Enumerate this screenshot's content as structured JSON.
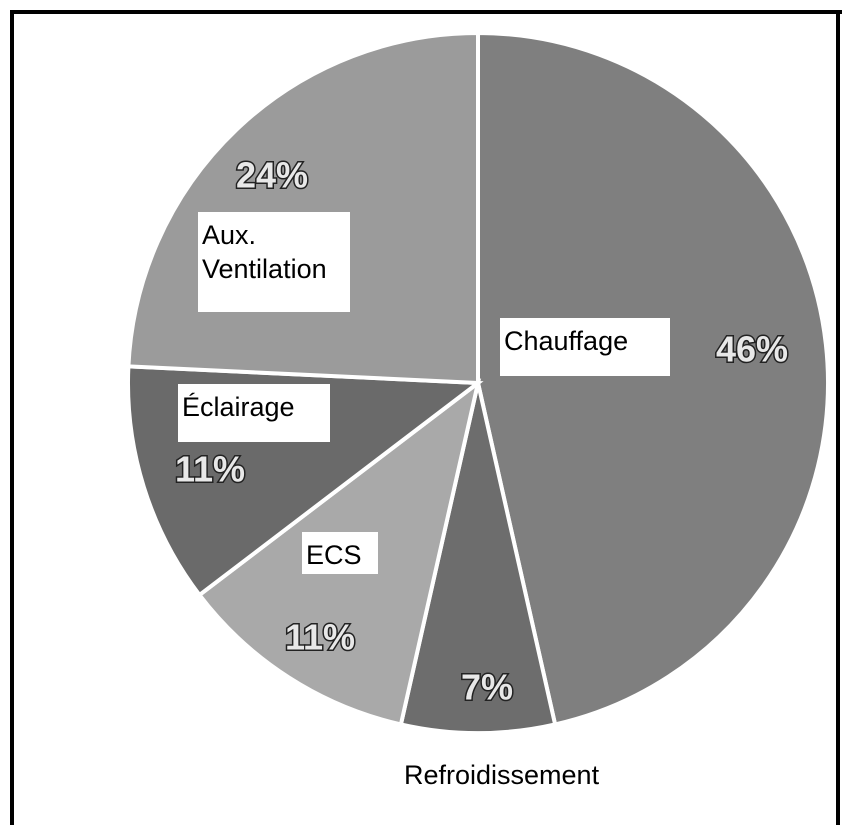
{
  "chart_data": {
    "type": "pie",
    "categories": [
      "Chauffage",
      "Refroidissement",
      "ECS",
      "Éclairage",
      "Aux. Ventilation"
    ],
    "values": [
      46,
      7,
      11,
      11,
      24
    ],
    "value_labels": [
      "46%",
      "7%",
      "11%",
      "11%",
      "24%"
    ],
    "colors": [
      "#7f7f7f",
      "#6d6d6d",
      "#a9a9a9",
      "#6a6a6a",
      "#9b9b9b"
    ]
  }
}
